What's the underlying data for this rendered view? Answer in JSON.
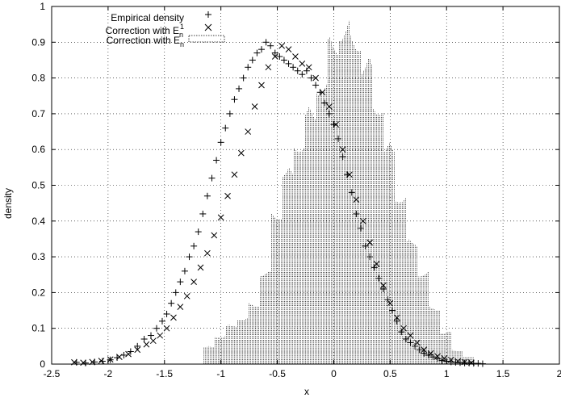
{
  "chart_data": {
    "type": "scatter",
    "xlabel": "x",
    "ylabel": "density",
    "xlim": [
      -2.5,
      2
    ],
    "ylim": [
      0,
      1
    ],
    "x_ticks": [
      "-2.5",
      "-2",
      "-1.5",
      "-1",
      "-0.5",
      "0",
      "0.5",
      "1",
      "1.5",
      "2"
    ],
    "y_ticks": [
      "0",
      "0.1",
      "0.2",
      "0.3",
      "0.4",
      "0.5",
      "0.6",
      "0.7",
      "0.8",
      "0.9",
      "1"
    ],
    "grid": true,
    "legend_position": "top-left",
    "legend": {
      "empirical": "Empirical density",
      "e1_prefix": "Correction with E",
      "e1_sub": "n",
      "e1_sup": "1",
      "en_prefix": "Correction with E",
      "en_sub": "n"
    },
    "series": [
      {
        "marker": "plus",
        "x": [
          -2.28,
          -2.2,
          -2.12,
          -2.05,
          -1.98,
          -1.92,
          -1.86,
          -1.8,
          -1.74,
          -1.68,
          -1.62,
          -1.57,
          -1.52,
          -1.48,
          -1.44,
          -1.4,
          -1.36,
          -1.32,
          -1.28,
          -1.24,
          -1.2,
          -1.16,
          -1.12,
          -1.08,
          -1.04,
          -1.0,
          -0.96,
          -0.92,
          -0.88,
          -0.84,
          -0.8,
          -0.76,
          -0.72,
          -0.68,
          -0.64,
          -0.6,
          -0.56,
          -0.52,
          -0.48,
          -0.44,
          -0.4,
          -0.36,
          -0.32,
          -0.28,
          -0.24,
          -0.2,
          -0.16,
          -0.12,
          -0.08,
          -0.04,
          0.0,
          0.04,
          0.08,
          0.12,
          0.16,
          0.2,
          0.24,
          0.28,
          0.32,
          0.36,
          0.4,
          0.44,
          0.48,
          0.52,
          0.56,
          0.6,
          0.64,
          0.68,
          0.72,
          0.76,
          0.8,
          0.84,
          0.88,
          0.92,
          0.96,
          1.0,
          1.04,
          1.08,
          1.12,
          1.16,
          1.2,
          1.24,
          1.28,
          1.32
        ],
        "y": [
          0.005,
          0.003,
          0.006,
          0.008,
          0.012,
          0.018,
          0.025,
          0.035,
          0.05,
          0.07,
          0.08,
          0.1,
          0.12,
          0.14,
          0.17,
          0.2,
          0.23,
          0.26,
          0.3,
          0.33,
          0.37,
          0.42,
          0.47,
          0.52,
          0.57,
          0.62,
          0.66,
          0.7,
          0.74,
          0.77,
          0.8,
          0.83,
          0.85,
          0.87,
          0.88,
          0.9,
          0.89,
          0.87,
          0.86,
          0.85,
          0.84,
          0.83,
          0.82,
          0.81,
          0.82,
          0.8,
          0.78,
          0.76,
          0.73,
          0.7,
          0.67,
          0.63,
          0.58,
          0.53,
          0.48,
          0.42,
          0.38,
          0.33,
          0.3,
          0.27,
          0.24,
          0.21,
          0.18,
          0.15,
          0.12,
          0.09,
          0.07,
          0.06,
          0.05,
          0.04,
          0.03,
          0.025,
          0.02,
          0.015,
          0.01,
          0.008,
          0.006,
          0.005,
          0.004,
          0.003,
          0.003,
          0.002,
          0.002,
          0.001
        ]
      },
      {
        "marker": "cross",
        "x": [
          -2.3,
          -2.22,
          -2.14,
          -2.06,
          -1.98,
          -1.9,
          -1.82,
          -1.74,
          -1.66,
          -1.6,
          -1.54,
          -1.48,
          -1.42,
          -1.36,
          -1.3,
          -1.24,
          -1.18,
          -1.12,
          -1.06,
          -1.0,
          -0.94,
          -0.88,
          -0.82,
          -0.76,
          -0.7,
          -0.64,
          -0.58,
          -0.52,
          -0.46,
          -0.4,
          -0.34,
          -0.28,
          -0.22,
          -0.16,
          -0.1,
          -0.04,
          0.02,
          0.08,
          0.14,
          0.2,
          0.26,
          0.32,
          0.38,
          0.44,
          0.5,
          0.56,
          0.62,
          0.68,
          0.74,
          0.8,
          0.86,
          0.92,
          0.98,
          1.04,
          1.1,
          1.16,
          1.22
        ],
        "y": [
          0.005,
          0.004,
          0.006,
          0.009,
          0.013,
          0.02,
          0.028,
          0.04,
          0.055,
          0.065,
          0.08,
          0.1,
          0.13,
          0.16,
          0.19,
          0.23,
          0.27,
          0.31,
          0.36,
          0.41,
          0.47,
          0.53,
          0.59,
          0.65,
          0.72,
          0.78,
          0.83,
          0.86,
          0.89,
          0.88,
          0.86,
          0.84,
          0.83,
          0.8,
          0.76,
          0.72,
          0.67,
          0.6,
          0.53,
          0.46,
          0.4,
          0.34,
          0.28,
          0.22,
          0.17,
          0.13,
          0.1,
          0.08,
          0.06,
          0.04,
          0.03,
          0.022,
          0.016,
          0.012,
          0.008,
          0.006,
          0.004
        ]
      },
      {
        "marker": "impulse",
        "x": [
          -1.1,
          -1.0,
          -0.9,
          -0.8,
          -0.7,
          -0.6,
          -0.5,
          -0.4,
          -0.3,
          -0.2,
          -0.1,
          0.0,
          0.1,
          0.2,
          0.3,
          0.4,
          0.5,
          0.6,
          0.7,
          0.8,
          0.9,
          1.0,
          1.1,
          1.2
        ],
        "y": [
          0.05,
          0.08,
          0.11,
          0.13,
          0.17,
          0.26,
          0.43,
          0.55,
          0.63,
          0.72,
          0.8,
          0.92,
          0.96,
          0.93,
          0.86,
          0.74,
          0.62,
          0.48,
          0.35,
          0.26,
          0.16,
          0.09,
          0.04,
          0.02
        ]
      }
    ]
  }
}
